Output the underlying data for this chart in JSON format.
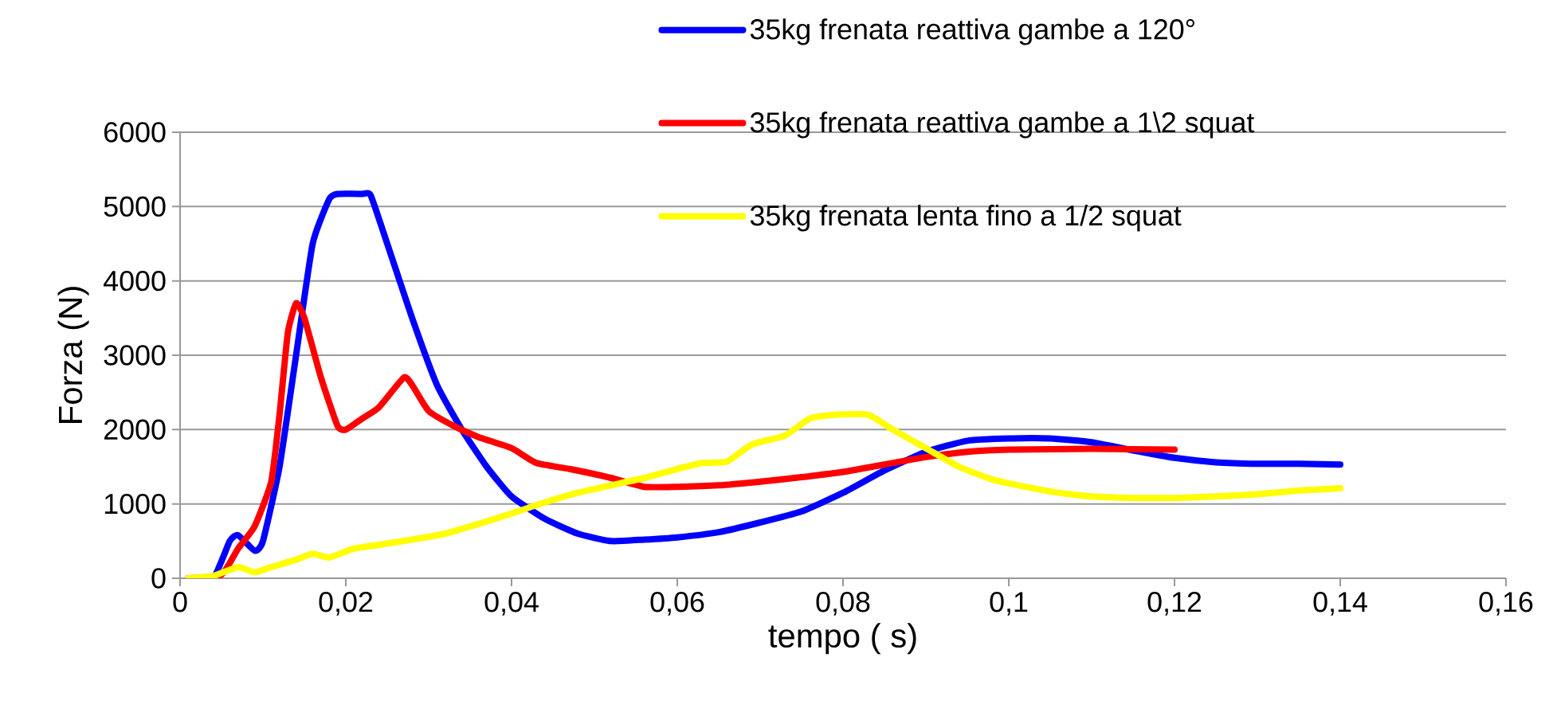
{
  "chart_data": {
    "type": "line",
    "xlabel": "tempo ( s)",
    "ylabel": "Forza (N)",
    "xlim": [
      0,
      0.16
    ],
    "ylim": [
      0,
      6000
    ],
    "xticks": [
      0,
      {
        "value": 0.02,
        "label": "0,02"
      },
      {
        "value": 0.04,
        "label": "0,04"
      },
      {
        "value": 0.06,
        "label": "0,06"
      },
      {
        "value": 0.08,
        "label": "0,08"
      },
      {
        "value": 0.1,
        "label": "0,1"
      },
      {
        "value": 0.12,
        "label": "0,12"
      },
      {
        "value": 0.14,
        "label": "0,14"
      },
      {
        "value": 0.16,
        "label": "0,16"
      }
    ],
    "yticks": [
      0,
      1000,
      2000,
      3000,
      4000,
      5000,
      6000
    ],
    "grid": "y",
    "legend": "top right",
    "marker": "none",
    "line_style": "solid",
    "series": [
      {
        "name": "35kg frenata reattiva gambe a 120°",
        "color": "#0000ff",
        "x": [
          0.001,
          0.004,
          0.006,
          0.007,
          0.009,
          0.01,
          0.012,
          0.014,
          0.016,
          0.018,
          0.019,
          0.022,
          0.023,
          0.025,
          0.028,
          0.031,
          0.034,
          0.037,
          0.04,
          0.044,
          0.048,
          0.052,
          0.056,
          0.06,
          0.065,
          0.07,
          0.075,
          0.08,
          0.085,
          0.09,
          0.095,
          0.1,
          0.105,
          0.11,
          0.115,
          0.12,
          0.125,
          0.13,
          0.135,
          0.14
        ],
        "values": [
          0,
          0,
          500,
          580,
          370,
          500,
          1500,
          3000,
          4500,
          5100,
          5170,
          5170,
          5150,
          4500,
          3500,
          2600,
          2000,
          1500,
          1100,
          800,
          600,
          500,
          520,
          550,
          620,
          750,
          900,
          1150,
          1450,
          1700,
          1850,
          1880,
          1880,
          1830,
          1720,
          1620,
          1560,
          1540,
          1540,
          1530
        ]
      },
      {
        "name": "35kg frenata reattiva gambe a 1\\2 squat",
        "color": "#ff0000",
        "x": [
          0.001,
          0.005,
          0.007,
          0.009,
          0.011,
          0.012,
          0.013,
          0.014,
          0.015,
          0.017,
          0.019,
          0.02,
          0.022,
          0.024,
          0.027,
          0.028,
          0.03,
          0.033,
          0.036,
          0.04,
          0.043,
          0.047,
          0.052,
          0.056,
          0.06,
          0.065,
          0.07,
          0.075,
          0.08,
          0.085,
          0.09,
          0.095,
          0.1,
          0.11,
          0.12
        ],
        "values": [
          0,
          50,
          400,
          700,
          1300,
          2200,
          3300,
          3700,
          3500,
          2700,
          2050,
          2000,
          2150,
          2300,
          2700,
          2600,
          2250,
          2050,
          1900,
          1750,
          1550,
          1470,
          1350,
          1230,
          1230,
          1250,
          1300,
          1360,
          1430,
          1530,
          1630,
          1700,
          1730,
          1740,
          1730
        ]
      },
      {
        "name": "35kg frenata lenta fino a 1/2 squat",
        "color": "#ffff00",
        "x": [
          0.001,
          0.004,
          0.007,
          0.009,
          0.011,
          0.014,
          0.016,
          0.018,
          0.021,
          0.024,
          0.028,
          0.032,
          0.036,
          0.04,
          0.044,
          0.048,
          0.052,
          0.056,
          0.06,
          0.063,
          0.066,
          0.069,
          0.073,
          0.076,
          0.079,
          0.083,
          0.086,
          0.09,
          0.094,
          0.098,
          0.102,
          0.106,
          0.11,
          0.115,
          0.12,
          0.125,
          0.13,
          0.135,
          0.14
        ],
        "values": [
          0,
          30,
          150,
          80,
          150,
          250,
          330,
          280,
          400,
          450,
          520,
          600,
          730,
          870,
          1020,
          1150,
          1250,
          1350,
          1470,
          1550,
          1570,
          1800,
          1920,
          2150,
          2200,
          2200,
          2000,
          1750,
          1500,
          1330,
          1230,
          1150,
          1100,
          1080,
          1080,
          1100,
          1130,
          1180,
          1210
        ]
      }
    ]
  }
}
